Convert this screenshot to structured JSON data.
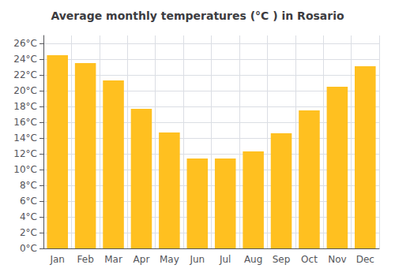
{
  "chart_data": {
    "type": "bar",
    "title": "Average monthly temperatures (°C ) in Rosario",
    "categories": [
      "Jan",
      "Feb",
      "Mar",
      "Apr",
      "May",
      "Jun",
      "Jul",
      "Aug",
      "Sep",
      "Oct",
      "Nov",
      "Dec"
    ],
    "values": [
      24.5,
      23.5,
      21.3,
      17.7,
      14.7,
      11.4,
      11.4,
      12.3,
      14.6,
      17.5,
      20.5,
      23.1
    ],
    "color": "#FFC020",
    "ylim": [
      0,
      27
    ],
    "yticks": [
      {
        "value": 0,
        "label": "0°C"
      },
      {
        "value": 2,
        "label": "2°C"
      },
      {
        "value": 4,
        "label": "4°C"
      },
      {
        "value": 6,
        "label": "6°C"
      },
      {
        "value": 8,
        "label": "8°C"
      },
      {
        "value": 10,
        "label": "10°C"
      },
      {
        "value": 12,
        "label": "12°C"
      },
      {
        "value": 14,
        "label": "14°C"
      },
      {
        "value": 16,
        "label": "16°C"
      },
      {
        "value": 18,
        "label": "18°C"
      },
      {
        "value": 20,
        "label": "20°C"
      },
      {
        "value": 22,
        "label": "22°C"
      },
      {
        "value": 24,
        "label": "24°C"
      },
      {
        "value": 26,
        "label": "26°C"
      }
    ],
    "grid": true
  }
}
